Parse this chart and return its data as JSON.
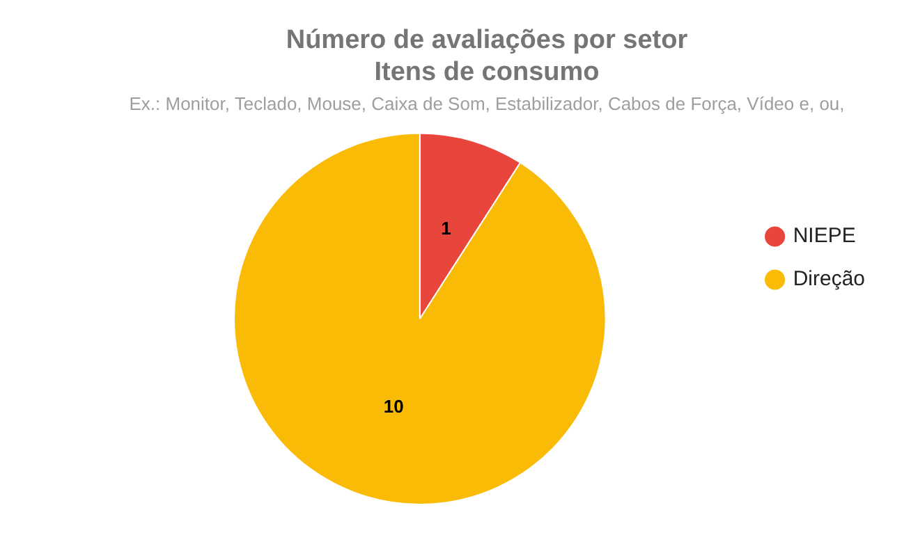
{
  "chart_data": {
    "type": "pie",
    "title": "Número de avaliações por setor\nItens de consumo",
    "subtitle": "Ex.: Monitor, Teclado, Mouse, Caixa de Som, Estabilizador, Cabos de Força, Vídeo e, ou,",
    "categories": [
      "NIEPE",
      "Direção"
    ],
    "values": [
      1,
      10
    ],
    "colors": [
      "#e8453c",
      "#f9bb06"
    ],
    "data_labels": true,
    "legend": "top right"
  }
}
